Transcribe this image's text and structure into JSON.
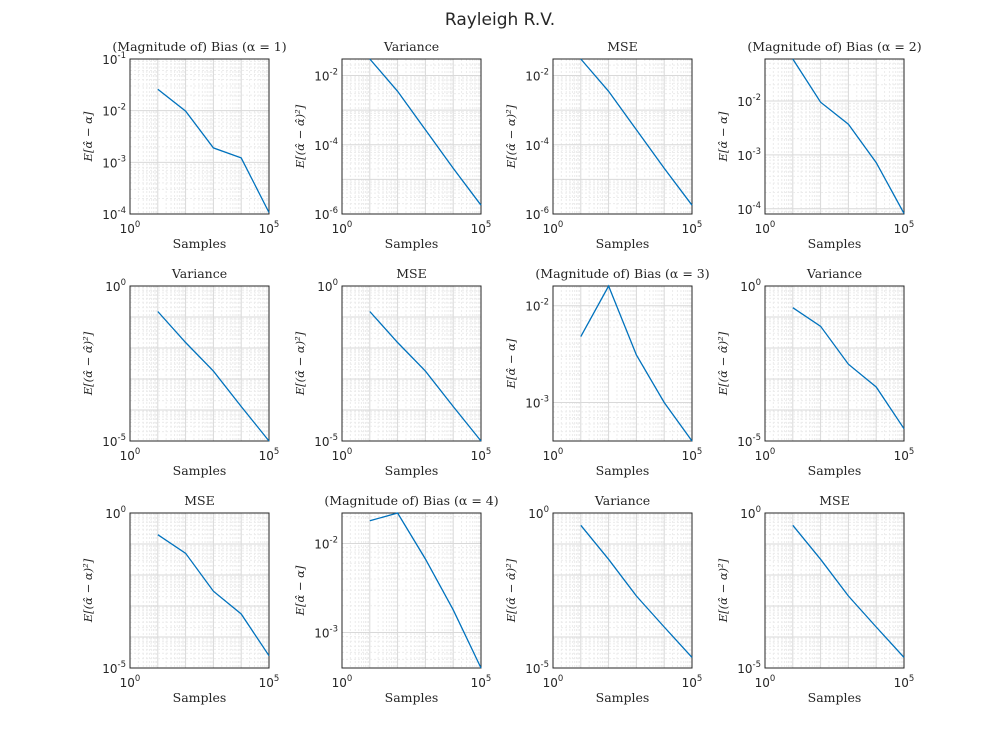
{
  "figure": {
    "title": "Rayleigh R.V."
  },
  "chart_data": [
    {
      "type": "line",
      "title": "(Magnitude of) Bias (α = 1)",
      "xlabel": "Samples",
      "ylabel": "E[α̂ − α]",
      "xscale": "log",
      "yscale": "log",
      "xlim": [
        1,
        100000
      ],
      "ylim": [
        0.0001,
        0.1
      ],
      "xticks": [
        {
          "base": "10",
          "exp": "0",
          "v": 1
        },
        {
          "base": "10",
          "exp": "5",
          "v": 100000
        }
      ],
      "yticks": [
        {
          "base": "10",
          "exp": "-4",
          "v": 0.0001
        },
        {
          "base": "10",
          "exp": "-3",
          "v": 0.001
        },
        {
          "base": "10",
          "exp": "-2",
          "v": 0.01
        },
        {
          "base": "10",
          "exp": "-1",
          "v": 0.1
        }
      ],
      "grid": true,
      "color": "#0072bd",
      "series": [
        {
          "x": [
            10,
            100,
            1000,
            10000,
            100000
          ],
          "y": [
            0.026,
            0.0098,
            0.0019,
            0.00122,
            0.000107
          ]
        }
      ]
    },
    {
      "type": "line",
      "title": "Variance",
      "xlabel": "Samples",
      "ylabel": "E[(α̂ − α̂)²]",
      "xscale": "log",
      "yscale": "log",
      "xlim": [
        1,
        100000
      ],
      "ylim": [
        1e-06,
        0.03
      ],
      "xticks": [
        {
          "base": "10",
          "exp": "0",
          "v": 1
        },
        {
          "base": "10",
          "exp": "5",
          "v": 100000
        }
      ],
      "yticks": [
        {
          "base": "10",
          "exp": "-6",
          "v": 1e-06
        },
        {
          "base": "10",
          "exp": "-4",
          "v": 0.0001
        },
        {
          "base": "10",
          "exp": "-2",
          "v": 0.01
        }
      ],
      "grid": true,
      "color": "#0072bd",
      "series": [
        {
          "x": [
            10,
            100,
            1000,
            10000,
            100000
          ],
          "y": [
            0.03,
            0.0035,
            0.00027,
            2.1e-05,
            1.8e-06
          ]
        }
      ]
    },
    {
      "type": "line",
      "title": "MSE",
      "xlabel": "Samples",
      "ylabel": "E[(α̂ − α)²]",
      "xscale": "log",
      "yscale": "log",
      "xlim": [
        1,
        100000
      ],
      "ylim": [
        1e-06,
        0.03
      ],
      "xticks": [
        {
          "base": "10",
          "exp": "0",
          "v": 1
        },
        {
          "base": "10",
          "exp": "5",
          "v": 100000
        }
      ],
      "yticks": [
        {
          "base": "10",
          "exp": "-6",
          "v": 1e-06
        },
        {
          "base": "10",
          "exp": "-4",
          "v": 0.0001
        },
        {
          "base": "10",
          "exp": "-2",
          "v": 0.01
        }
      ],
      "grid": true,
      "color": "#0072bd",
      "series": [
        {
          "x": [
            10,
            100,
            1000,
            10000,
            100000
          ],
          "y": [
            0.03,
            0.0035,
            0.00027,
            2.1e-05,
            1.8e-06
          ]
        }
      ]
    },
    {
      "type": "line",
      "title": "(Magnitude of) Bias (α = 2)",
      "xlabel": "Samples",
      "ylabel": "E[α̂ − α]",
      "xscale": "log",
      "yscale": "log",
      "xlim": [
        1,
        100000
      ],
      "ylim": [
        8e-05,
        0.06
      ],
      "xticks": [
        {
          "base": "10",
          "exp": "0",
          "v": 1
        },
        {
          "base": "10",
          "exp": "5",
          "v": 100000
        }
      ],
      "yticks": [
        {
          "base": "10",
          "exp": "-4",
          "v": 0.0001
        },
        {
          "base": "10",
          "exp": "-3",
          "v": 0.001
        },
        {
          "base": "10",
          "exp": "-2",
          "v": 0.01
        }
      ],
      "grid": true,
      "color": "#0072bd",
      "series": [
        {
          "x": [
            10,
            100,
            1000,
            10000,
            100000
          ],
          "y": [
            0.06,
            0.0095,
            0.0037,
            0.00072,
            8.2e-05
          ]
        }
      ]
    },
    {
      "type": "line",
      "title": "Variance",
      "xlabel": "Samples",
      "ylabel": "E[(α̂ − α̂)²]",
      "xscale": "log",
      "yscale": "log",
      "xlim": [
        1,
        100000
      ],
      "ylim": [
        1e-05,
        1
      ],
      "xticks": [
        {
          "base": "10",
          "exp": "0",
          "v": 1
        },
        {
          "base": "10",
          "exp": "5",
          "v": 100000
        }
      ],
      "yticks": [
        {
          "base": "10",
          "exp": "-5",
          "v": 1e-05
        },
        {
          "base": "10",
          "exp": "0",
          "v": 1
        }
      ],
      "grid": true,
      "color": "#0072bd",
      "series": [
        {
          "x": [
            10,
            100,
            1000,
            10000,
            100000
          ],
          "y": [
            0.15,
            0.015,
            0.0018,
            0.00013,
            1e-05
          ]
        }
      ]
    },
    {
      "type": "line",
      "title": "MSE",
      "xlabel": "Samples",
      "ylabel": "E[(α̂ − α)²]",
      "xscale": "log",
      "yscale": "log",
      "xlim": [
        1,
        100000
      ],
      "ylim": [
        1e-05,
        1
      ],
      "xticks": [
        {
          "base": "10",
          "exp": "0",
          "v": 1
        },
        {
          "base": "10",
          "exp": "5",
          "v": 100000
        }
      ],
      "yticks": [
        {
          "base": "10",
          "exp": "-5",
          "v": 1e-05
        },
        {
          "base": "10",
          "exp": "0",
          "v": 1
        }
      ],
      "grid": true,
      "color": "#0072bd",
      "series": [
        {
          "x": [
            10,
            100,
            1000,
            10000,
            100000
          ],
          "y": [
            0.15,
            0.015,
            0.0018,
            0.00013,
            1e-05
          ]
        }
      ]
    },
    {
      "type": "line",
      "title": "(Magnitude of) Bias (α = 3)",
      "xlabel": "Samples",
      "ylabel": "E[α̂ − α]",
      "xscale": "log",
      "yscale": "log",
      "xlim": [
        1,
        100000
      ],
      "ylim": [
        0.0004,
        0.016
      ],
      "xticks": [
        {
          "base": "10",
          "exp": "0",
          "v": 1
        },
        {
          "base": "10",
          "exp": "5",
          "v": 100000
        }
      ],
      "yticks": [
        {
          "base": "10",
          "exp": "-3",
          "v": 0.001
        },
        {
          "base": "10",
          "exp": "-2",
          "v": 0.01
        }
      ],
      "grid": true,
      "color": "#0072bd",
      "series": [
        {
          "x": [
            10,
            100,
            1000,
            10000,
            100000
          ],
          "y": [
            0.0048,
            0.016,
            0.0031,
            0.001,
            0.0004
          ]
        }
      ]
    },
    {
      "type": "line",
      "title": "Variance",
      "xlabel": "Samples",
      "ylabel": "E[(α̂ − α̂)²]",
      "xscale": "log",
      "yscale": "log",
      "xlim": [
        1,
        100000
      ],
      "ylim": [
        1e-05,
        1
      ],
      "xticks": [
        {
          "base": "10",
          "exp": "0",
          "v": 1
        },
        {
          "base": "10",
          "exp": "5",
          "v": 100000
        }
      ],
      "yticks": [
        {
          "base": "10",
          "exp": "-5",
          "v": 1e-05
        },
        {
          "base": "10",
          "exp": "0",
          "v": 1
        }
      ],
      "grid": true,
      "color": "#0072bd",
      "series": [
        {
          "x": [
            10,
            100,
            1000,
            10000,
            100000
          ],
          "y": [
            0.2,
            0.05,
            0.003,
            0.00055,
            2.5e-05
          ]
        }
      ]
    },
    {
      "type": "line",
      "title": "MSE",
      "xlabel": "Samples",
      "ylabel": "E[(α̂ − α)²]",
      "xscale": "log",
      "yscale": "log",
      "xlim": [
        1,
        100000
      ],
      "ylim": [
        1e-05,
        1
      ],
      "xticks": [
        {
          "base": "10",
          "exp": "0",
          "v": 1
        },
        {
          "base": "10",
          "exp": "5",
          "v": 100000
        }
      ],
      "yticks": [
        {
          "base": "10",
          "exp": "-5",
          "v": 1e-05
        },
        {
          "base": "10",
          "exp": "0",
          "v": 1
        }
      ],
      "grid": true,
      "color": "#0072bd",
      "series": [
        {
          "x": [
            10,
            100,
            1000,
            10000,
            100000
          ],
          "y": [
            0.2,
            0.05,
            0.003,
            0.00055,
            2.5e-05
          ]
        }
      ]
    },
    {
      "type": "line",
      "title": "(Magnitude of) Bias (α = 4)",
      "xlabel": "Samples",
      "ylabel": "E[α̂ − α]",
      "xscale": "log",
      "yscale": "log",
      "xlim": [
        1,
        100000
      ],
      "ylim": [
        0.0004,
        0.022
      ],
      "xticks": [
        {
          "base": "10",
          "exp": "0",
          "v": 1
        },
        {
          "base": "10",
          "exp": "5",
          "v": 100000
        }
      ],
      "yticks": [
        {
          "base": "10",
          "exp": "-3",
          "v": 0.001
        },
        {
          "base": "10",
          "exp": "-2",
          "v": 0.01
        }
      ],
      "grid": true,
      "color": "#0072bd",
      "series": [
        {
          "x": [
            10,
            100,
            1000,
            10000,
            100000
          ],
          "y": [
            0.018,
            0.022,
            0.0067,
            0.0018,
            0.0004
          ]
        }
      ]
    },
    {
      "type": "line",
      "title": "Variance",
      "xlabel": "Samples",
      "ylabel": "E[(α̂ − α̂)²]",
      "xscale": "log",
      "yscale": "log",
      "xlim": [
        1,
        100000
      ],
      "ylim": [
        1e-05,
        1
      ],
      "xticks": [
        {
          "base": "10",
          "exp": "0",
          "v": 1
        },
        {
          "base": "10",
          "exp": "5",
          "v": 100000
        }
      ],
      "yticks": [
        {
          "base": "10",
          "exp": "-5",
          "v": 1e-05
        },
        {
          "base": "10",
          "exp": "0",
          "v": 1
        }
      ],
      "grid": true,
      "color": "#0072bd",
      "series": [
        {
          "x": [
            10,
            100,
            1000,
            10000,
            100000
          ],
          "y": [
            0.4,
            0.032,
            0.0021,
            0.00021,
            2.2e-05
          ]
        }
      ]
    },
    {
      "type": "line",
      "title": "MSE",
      "xlabel": "Samples",
      "ylabel": "E[(α̂ − α)²]",
      "xscale": "log",
      "yscale": "log",
      "xlim": [
        1,
        100000
      ],
      "ylim": [
        1e-05,
        1
      ],
      "xticks": [
        {
          "base": "10",
          "exp": "0",
          "v": 1
        },
        {
          "base": "10",
          "exp": "5",
          "v": 100000
        }
      ],
      "yticks": [
        {
          "base": "10",
          "exp": "-5",
          "v": 1e-05
        },
        {
          "base": "10",
          "exp": "0",
          "v": 1
        }
      ],
      "grid": true,
      "color": "#0072bd",
      "series": [
        {
          "x": [
            10,
            100,
            1000,
            10000,
            100000
          ],
          "y": [
            0.4,
            0.032,
            0.0021,
            0.00021,
            2.2e-05
          ]
        }
      ]
    }
  ]
}
